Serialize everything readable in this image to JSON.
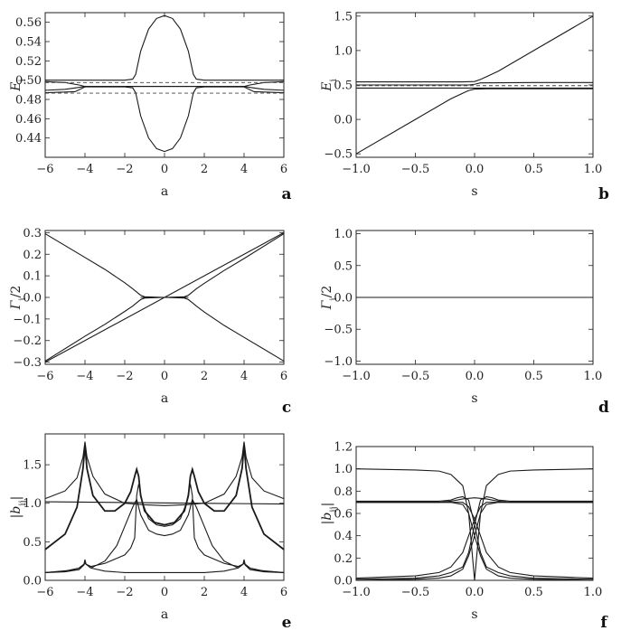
{
  "chart_data": [
    {
      "id": "a",
      "type": "line",
      "panel_label": "a",
      "xlabel": "a",
      "ylabel": "E_i",
      "xlim": [
        -6,
        6
      ],
      "ylim": [
        0.42,
        0.57
      ],
      "xticks": [
        "-6",
        "-4",
        "-2",
        "0",
        "2",
        "4",
        "6"
      ],
      "yticks": [
        "0.44",
        "0.46",
        "0.48",
        "0.50",
        "0.52",
        "0.54",
        "0.56"
      ],
      "series": [
        {
          "style": "solid",
          "x": [
            -6,
            -4.5,
            -4,
            -3.5,
            -2,
            -1.6,
            -1.45,
            -1.2,
            -0.8,
            -0.4,
            0,
            0.4,
            0.8,
            1.2,
            1.45,
            1.6,
            2,
            3.5,
            4,
            4.5,
            6
          ],
          "y": [
            0.5,
            0.5,
            0.5,
            0.5,
            0.5,
            0.501,
            0.506,
            0.53,
            0.553,
            0.564,
            0.567,
            0.564,
            0.553,
            0.53,
            0.506,
            0.501,
            0.5,
            0.5,
            0.5,
            0.5,
            0.5
          ]
        },
        {
          "style": "solid",
          "x": [
            -6,
            -4.5,
            -4,
            -3.5,
            -2,
            -1.6,
            -1.45,
            -1.2,
            -0.8,
            -0.4,
            0,
            0.4,
            0.8,
            1.2,
            1.45,
            1.6,
            2,
            3.5,
            4,
            4.5,
            6
          ],
          "y": [
            0.487,
            0.488,
            0.493,
            0.493,
            0.493,
            0.492,
            0.487,
            0.463,
            0.44,
            0.429,
            0.426,
            0.429,
            0.44,
            0.463,
            0.487,
            0.492,
            0.493,
            0.493,
            0.493,
            0.488,
            0.487
          ]
        },
        {
          "style": "solid",
          "x": [
            -6,
            -5,
            -4.3,
            -4,
            -3,
            -1,
            0,
            1,
            3,
            4,
            4.3,
            5,
            6
          ],
          "y": [
            0.4985,
            0.4975,
            0.495,
            0.4935,
            0.4935,
            0.4935,
            0.4935,
            0.4935,
            0.4935,
            0.4935,
            0.495,
            0.4975,
            0.4985
          ]
        },
        {
          "style": "solid",
          "x": [
            -6,
            -5,
            -4.3,
            -4,
            -3,
            -1,
            0,
            1,
            3,
            4,
            4.3,
            5,
            6
          ],
          "y": [
            0.4895,
            0.4905,
            0.4925,
            0.4935,
            0.4935,
            0.4935,
            0.4935,
            0.4935,
            0.4935,
            0.4935,
            0.4925,
            0.4905,
            0.4895
          ]
        },
        {
          "style": "dashed",
          "x": [
            -6,
            6
          ],
          "y": [
            0.4975,
            0.4975
          ]
        },
        {
          "style": "dashed",
          "x": [
            -6,
            6
          ],
          "y": [
            0.4865,
            0.4865
          ]
        }
      ]
    },
    {
      "id": "b",
      "type": "line",
      "panel_label": "b",
      "xlabel": "s",
      "ylabel": "E_i",
      "xlim": [
        -1,
        1
      ],
      "ylim": [
        -0.55,
        1.55
      ],
      "xticks": [
        "-1.0",
        "-0.5",
        "0.0",
        "0.5",
        "1.0"
      ],
      "yticks": [
        "-0.5",
        "0.0",
        "0.5",
        "1.0",
        "1.5"
      ],
      "series": [
        {
          "style": "solid",
          "x": [
            -1,
            -0.5,
            -0.1,
            0,
            0.05,
            0.1,
            0.2,
            0.5,
            1
          ],
          "y": [
            0.545,
            0.545,
            0.545,
            0.55,
            0.58,
            0.62,
            0.7,
            1.0,
            1.5
          ]
        },
        {
          "style": "solid",
          "x": [
            -1,
            -0.5,
            -0.2,
            -0.1,
            -0.05,
            0,
            0.1,
            0.5,
            1
          ],
          "y": [
            -0.5,
            0,
            0.3,
            0.38,
            0.42,
            0.44,
            0.445,
            0.445,
            0.445
          ]
        },
        {
          "style": "solid",
          "x": [
            -1,
            -0.5,
            -0.05,
            0,
            0.05,
            0.5,
            1
          ],
          "y": [
            0.5,
            0.5,
            0.5,
            0.51,
            0.53,
            0.535,
            0.535
          ]
        },
        {
          "style": "solid",
          "x": [
            -1,
            1
          ],
          "y": [
            0.455,
            0.455
          ]
        },
        {
          "style": "dashed",
          "x": [
            -1,
            1
          ],
          "y": [
            0.49,
            0.49
          ]
        }
      ]
    },
    {
      "id": "c",
      "type": "line",
      "panel_label": "c",
      "xlabel": "a",
      "ylabel": "Γ_i/2",
      "xlim": [
        -6,
        6
      ],
      "ylim": [
        -0.31,
        0.31
      ],
      "xticks": [
        "-6",
        "-4",
        "-2",
        "0",
        "2",
        "4",
        "6"
      ],
      "yticks": [
        "-0.3",
        "-0.2",
        "-0.1",
        "0.0",
        "0.1",
        "0.2",
        "0.3"
      ],
      "series": [
        {
          "style": "solid",
          "x": [
            -6,
            6
          ],
          "y": [
            -0.3,
            0.3
          ]
        },
        {
          "style": "solid",
          "x": [
            -6,
            -4,
            -3,
            -2,
            -1.6,
            -1.4,
            -1.2,
            -1,
            0,
            1,
            1.2,
            1.4,
            1.6,
            2,
            3,
            4,
            6
          ],
          "y": [
            0.295,
            0.185,
            0.13,
            0.068,
            0.04,
            0.025,
            0.01,
            0.003,
            0.0,
            -0.003,
            -0.01,
            -0.025,
            -0.04,
            -0.068,
            -0.13,
            -0.185,
            -0.295
          ]
        },
        {
          "style": "solid",
          "x": [
            -6,
            -4,
            -3,
            -2,
            -1.6,
            -1.4,
            -1.2,
            -1,
            0,
            1,
            1.2,
            1.4,
            1.6,
            2,
            3,
            4,
            6
          ],
          "y": [
            -0.295,
            -0.18,
            -0.125,
            -0.065,
            -0.04,
            -0.025,
            -0.01,
            -0.003,
            0.0,
            0.003,
            0.01,
            0.025,
            0.04,
            0.065,
            0.125,
            0.18,
            0.295
          ]
        },
        {
          "style": "solid",
          "x": [
            -1.2,
            1.2
          ],
          "y": [
            0.0,
            0.0
          ]
        }
      ]
    },
    {
      "id": "d",
      "type": "line",
      "panel_label": "d",
      "xlabel": "s",
      "ylabel": "Γ_i/2",
      "xlim": [
        -1,
        1
      ],
      "ylim": [
        -1.05,
        1.05
      ],
      "xticks": [
        "-1.0",
        "-0.5",
        "0.0",
        "0.5",
        "1.0"
      ],
      "yticks": [
        "-1.0",
        "-0.5",
        "0.0",
        "0.5",
        "1.0"
      ],
      "series": [
        {
          "style": "solid",
          "x": [
            -1,
            1
          ],
          "y": [
            0.0,
            0.0
          ]
        }
      ]
    },
    {
      "id": "e",
      "type": "line",
      "panel_label": "e",
      "xlabel": "a",
      "ylabel": "|b_ij|",
      "xlim": [
        -6,
        6
      ],
      "ylim": [
        0.0,
        1.9
      ],
      "xticks": [
        "-6",
        "-4",
        "-2",
        "0",
        "2",
        "4",
        "6"
      ],
      "yticks": [
        "0.0",
        "0.5",
        "1.0",
        "1.5"
      ],
      "series": [
        {
          "style": "solid",
          "x": [
            -6,
            6
          ],
          "y": [
            1.02,
            0.99
          ]
        },
        {
          "style": "solid",
          "x": [
            -6,
            -5,
            -4.4,
            -4.1,
            -4,
            -3.9,
            -3.6,
            -3,
            -2,
            -1,
            0,
            1,
            2,
            3,
            3.6,
            3.9,
            4,
            4.1,
            4.4,
            5,
            6
          ],
          "y": [
            1.06,
            1.16,
            1.33,
            1.6,
            1.8,
            1.6,
            1.35,
            1.12,
            1.0,
            0.98,
            0.97,
            0.98,
            1.0,
            1.12,
            1.35,
            1.6,
            1.8,
            1.6,
            1.33,
            1.16,
            1.06
          ]
        },
        {
          "style": "solid",
          "x": [
            -6,
            -5,
            -4.4,
            -4.1,
            -4,
            -3.9,
            -3.6,
            -3,
            -2.5,
            -2,
            -1.7,
            -1.5,
            -1.4,
            -1.3,
            -1.2,
            -1,
            -0.5,
            0,
            0.5,
            1,
            1.2,
            1.3,
            1.4,
            1.5,
            1.7,
            2,
            2.5,
            3,
            3.6,
            3.9,
            4,
            4.1,
            4.4,
            5,
            6
          ],
          "y": [
            0.4,
            0.6,
            0.95,
            1.45,
            1.75,
            1.45,
            1.1,
            0.9,
            0.9,
            1.0,
            1.15,
            1.35,
            1.44,
            1.35,
            1.1,
            0.9,
            0.75,
            0.72,
            0.75,
            0.9,
            1.1,
            1.35,
            1.44,
            1.35,
            1.15,
            1.0,
            0.9,
            0.9,
            1.1,
            1.45,
            1.75,
            1.45,
            0.95,
            0.6,
            0.4
          ],
          "weight": "thick"
        },
        {
          "style": "solid",
          "x": [
            -6,
            -5,
            -4.3,
            -4.05,
            -4,
            -3.95,
            -3.7,
            -3,
            -2,
            -1.7,
            -1.5,
            -1.4,
            -1.3,
            -1.1,
            -0.8,
            -0.4,
            0,
            0.4,
            0.8,
            1.1,
            1.3,
            1.4,
            1.5,
            1.7,
            2,
            3,
            3.7,
            3.95,
            4,
            4.05,
            4.3,
            5,
            6
          ],
          "y": [
            0.1,
            0.11,
            0.14,
            0.2,
            0.25,
            0.21,
            0.18,
            0.22,
            0.33,
            0.42,
            0.55,
            1.1,
            1.25,
            1.0,
            0.8,
            0.72,
            0.7,
            0.72,
            0.8,
            1.0,
            1.25,
            1.1,
            0.55,
            0.42,
            0.33,
            0.22,
            0.18,
            0.21,
            0.25,
            0.2,
            0.14,
            0.11,
            0.1
          ]
        },
        {
          "style": "solid",
          "x": [
            -6,
            -5,
            -4.3,
            -4.05,
            -4,
            -3.95,
            -3.7,
            -3,
            -2.4,
            -2,
            -1.6,
            -1.4,
            -1.2,
            -0.8,
            -0.4,
            0,
            0.4,
            0.8,
            1.2,
            1.4,
            1.6,
            2,
            2.4,
            3,
            3.7,
            3.95,
            4,
            4.05,
            4.3,
            5,
            6
          ],
          "y": [
            0.1,
            0.12,
            0.16,
            0.21,
            0.27,
            0.21,
            0.16,
            0.25,
            0.45,
            0.7,
            0.95,
            1.05,
            0.85,
            0.65,
            0.6,
            0.58,
            0.6,
            0.65,
            0.85,
            1.05,
            0.95,
            0.7,
            0.45,
            0.25,
            0.16,
            0.21,
            0.27,
            0.21,
            0.16,
            0.12,
            0.1
          ]
        },
        {
          "style": "solid",
          "x": [
            -6,
            -4.3,
            -4,
            -3.7,
            -3,
            -2,
            -1.6,
            -1.4,
            -1.2,
            -0.8,
            -0.4,
            0,
            0.4,
            0.8,
            1.2,
            1.4,
            1.6,
            2,
            3,
            3.7,
            4,
            4.3,
            6
          ],
          "y": [
            0.1,
            0.14,
            0.22,
            0.16,
            0.12,
            0.1,
            0.1,
            0.1,
            0.1,
            0.1,
            0.1,
            0.1,
            0.1,
            0.1,
            0.1,
            0.1,
            0.1,
            0.1,
            0.12,
            0.16,
            0.22,
            0.14,
            0.1
          ]
        }
      ]
    },
    {
      "id": "f",
      "type": "line",
      "panel_label": "f",
      "xlabel": "s",
      "ylabel": "|b_ij|",
      "xlim": [
        -1,
        1
      ],
      "ylim": [
        0.0,
        1.2
      ],
      "xticks": [
        "-1.0",
        "-0.5",
        "0.0",
        "0.5",
        "1.0"
      ],
      "yticks": [
        "0.0",
        "0.2",
        "0.4",
        "0.6",
        "0.8",
        "1.0",
        "1.2"
      ],
      "series": [
        {
          "style": "solid",
          "x": [
            -1,
            -0.5,
            -0.3,
            -0.2,
            -0.1,
            -0.05,
            0,
            0.05,
            0.1,
            0.2,
            0.3,
            0.5,
            1
          ],
          "y": [
            1.0,
            0.99,
            0.98,
            0.95,
            0.85,
            0.6,
            0.0,
            0.6,
            0.85,
            0.95,
            0.98,
            0.99,
            1.0
          ]
        },
        {
          "style": "solid",
          "x": [
            -1,
            -0.5,
            -0.3,
            -0.2,
            -0.1,
            0,
            0.1,
            0.2,
            0.3,
            0.5,
            1
          ],
          "y": [
            0.7,
            0.7,
            0.7,
            0.71,
            0.73,
            0.74,
            0.73,
            0.71,
            0.7,
            0.7,
            0.7
          ]
        },
        {
          "style": "solid",
          "x": [
            -1,
            -0.5,
            -0.3,
            -0.2,
            -0.15,
            -0.1,
            -0.05,
            0,
            0.05,
            0.1,
            0.2,
            0.3,
            0.5,
            1
          ],
          "y": [
            0.71,
            0.71,
            0.71,
            0.72,
            0.74,
            0.75,
            0.72,
            0.5,
            0.25,
            0.12,
            0.07,
            0.04,
            0.02,
            0.01
          ]
        },
        {
          "style": "solid",
          "x": [
            -1,
            -0.5,
            -0.3,
            -0.2,
            -0.1,
            -0.05,
            0,
            0.05,
            0.1,
            0.15,
            0.2,
            0.3,
            0.5,
            1
          ],
          "y": [
            0.01,
            0.02,
            0.04,
            0.07,
            0.12,
            0.25,
            0.5,
            0.72,
            0.75,
            0.74,
            0.72,
            0.71,
            0.71,
            0.71
          ]
        },
        {
          "style": "solid",
          "x": [
            -1,
            -0.5,
            -0.3,
            -0.2,
            -0.1,
            -0.05,
            0,
            0.05,
            0.1,
            0.2,
            0.3,
            0.5,
            1
          ],
          "y": [
            0.02,
            0.04,
            0.07,
            0.12,
            0.25,
            0.4,
            0.55,
            0.66,
            0.7,
            0.7,
            0.7,
            0.7,
            0.7
          ]
        },
        {
          "style": "solid",
          "x": [
            -1,
            -0.5,
            -0.3,
            -0.2,
            -0.1,
            -0.05,
            0,
            0.05,
            0.1,
            0.2,
            0.3,
            0.5,
            1
          ],
          "y": [
            0.7,
            0.7,
            0.7,
            0.7,
            0.7,
            0.66,
            0.55,
            0.4,
            0.25,
            0.12,
            0.07,
            0.04,
            0.02
          ]
        },
        {
          "style": "solid",
          "x": [
            -1,
            -0.5,
            -0.3,
            -0.2,
            -0.1,
            -0.05,
            0,
            0.05,
            0.1,
            0.2,
            0.3,
            0.5,
            1
          ],
          "y": [
            0.0,
            0.01,
            0.02,
            0.04,
            0.1,
            0.22,
            0.4,
            0.6,
            0.68,
            0.7,
            0.7,
            0.7,
            0.7
          ]
        },
        {
          "style": "solid",
          "x": [
            -1,
            -0.5,
            -0.3,
            -0.2,
            -0.1,
            -0.05,
            0,
            0.05,
            0.1,
            0.2,
            0.3,
            0.5,
            1
          ],
          "y": [
            0.7,
            0.7,
            0.7,
            0.7,
            0.68,
            0.6,
            0.4,
            0.22,
            0.1,
            0.04,
            0.02,
            0.01,
            0.0
          ]
        }
      ]
    }
  ]
}
